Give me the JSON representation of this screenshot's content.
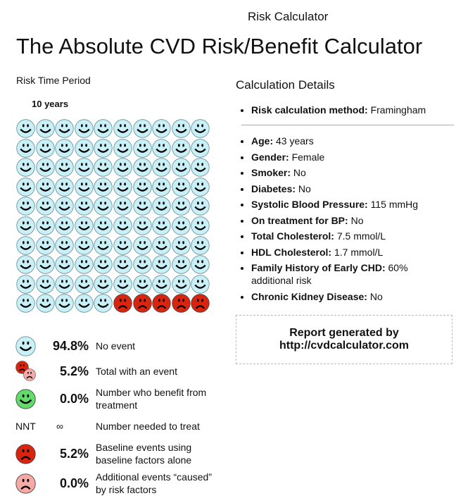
{
  "header": {
    "app_title": "Risk Calculator",
    "page_title": "The Absolute CVD Risk/Benefit Calculator"
  },
  "risk_time": {
    "label": "Risk Time Period",
    "value": "10 years"
  },
  "grid": {
    "no_event_count": 95,
    "event_count": 5,
    "colors": {
      "no_event": "#c8f0f6",
      "event": "#d9240f",
      "benefit": "#5fdc6a",
      "additional": "#f5aaa5"
    }
  },
  "legend": [
    {
      "icon": "smiley-blue-icon",
      "value": "94.8%",
      "text": "No event"
    },
    {
      "icon": "combined-frown-icon",
      "value": "5.2%",
      "text": "Total with an event"
    },
    {
      "icon": "smiley-green-icon",
      "value": "0.0%",
      "text": "Number who benefit from treatment"
    },
    {
      "icon": "nnt",
      "label": "NNT",
      "value": "∞",
      "text": "Number needed to treat"
    },
    {
      "icon": "frown-red-icon",
      "value": "5.2%",
      "text": "Baseline events using baseline factors alone"
    },
    {
      "icon": "frown-pink-icon",
      "value": "0.0%",
      "text": "Additional events “caused” by risk factors"
    }
  ],
  "details": {
    "title": "Calculation Details",
    "method": {
      "label": "Risk calculation method:",
      "value": "Framingham"
    },
    "items": [
      {
        "label": "Age:",
        "value": "43 years"
      },
      {
        "label": "Gender:",
        "value": "Female"
      },
      {
        "label": "Smoker:",
        "value": "No"
      },
      {
        "label": "Diabetes:",
        "value": "No"
      },
      {
        "label": "Systolic Blood Pressure:",
        "value": "115 mmHg"
      },
      {
        "label": "On treatment for BP:",
        "value": "No"
      },
      {
        "label": "Total Cholesterol:",
        "value": "7.5 mmol/L"
      },
      {
        "label": "HDL Cholesterol:",
        "value": "1.7 mmol/L"
      },
      {
        "label": "Family History of Early CHD:",
        "value": "60% additional risk"
      },
      {
        "label": "Chronic Kidney Disease:",
        "value": "No"
      }
    ]
  },
  "report": {
    "line1": "Report generated by",
    "line2": "http://cvdcalculator.com"
  }
}
